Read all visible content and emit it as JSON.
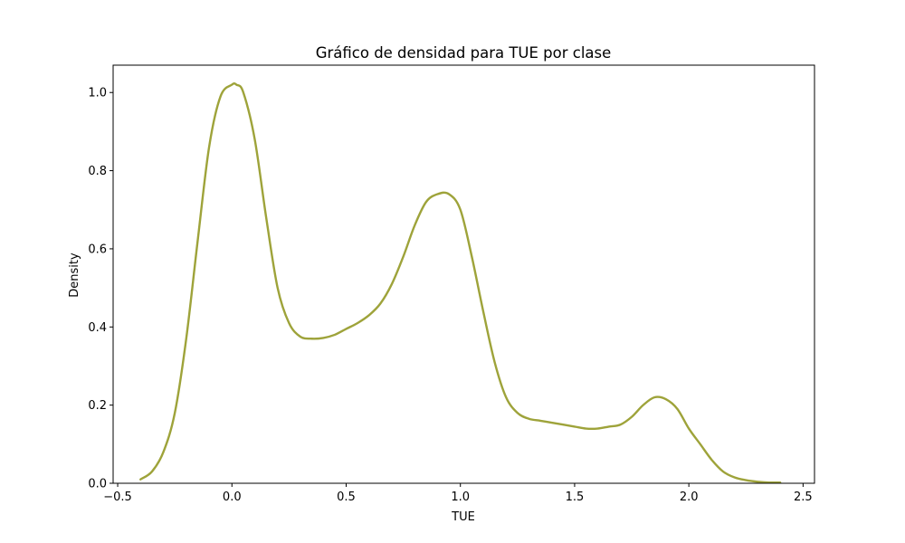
{
  "chart_data": {
    "type": "line",
    "title": "Gráfico de densidad para TUE por clase",
    "xlabel": "TUE",
    "ylabel": "Density",
    "xlim": [
      -0.52,
      2.55
    ],
    "ylim": [
      0,
      1.07
    ],
    "xticks": [
      -0.5,
      0.0,
      0.5,
      1.0,
      1.5,
      2.0,
      2.5
    ],
    "xtick_labels": [
      "−0.5",
      "0.0",
      "0.5",
      "1.0",
      "1.5",
      "2.0",
      "2.5"
    ],
    "yticks": [
      0.0,
      0.2,
      0.4,
      0.6,
      0.8,
      1.0
    ],
    "ytick_labels": [
      "0.0",
      "0.2",
      "0.4",
      "0.6",
      "0.8",
      "1.0"
    ],
    "grid": false,
    "legend": null,
    "series": [
      {
        "color": "#9ea33a",
        "x": [
          -0.4,
          -0.35,
          -0.3,
          -0.25,
          -0.2,
          -0.15,
          -0.1,
          -0.05,
          0.0,
          0.02,
          0.05,
          0.1,
          0.15,
          0.2,
          0.25,
          0.3,
          0.35,
          0.4,
          0.45,
          0.5,
          0.55,
          0.6,
          0.65,
          0.7,
          0.75,
          0.8,
          0.85,
          0.9,
          0.95,
          1.0,
          1.05,
          1.1,
          1.15,
          1.2,
          1.25,
          1.3,
          1.35,
          1.4,
          1.45,
          1.5,
          1.55,
          1.6,
          1.65,
          1.7,
          1.75,
          1.8,
          1.85,
          1.9,
          1.95,
          2.0,
          2.05,
          2.1,
          2.15,
          2.2,
          2.25,
          2.3,
          2.35,
          2.4
        ],
        "y": [
          0.01,
          0.03,
          0.08,
          0.18,
          0.37,
          0.62,
          0.86,
          0.99,
          1.02,
          1.02,
          1.0,
          0.88,
          0.68,
          0.5,
          0.41,
          0.375,
          0.37,
          0.372,
          0.38,
          0.395,
          0.41,
          0.43,
          0.46,
          0.51,
          0.58,
          0.66,
          0.72,
          0.74,
          0.74,
          0.7,
          0.58,
          0.44,
          0.31,
          0.22,
          0.18,
          0.165,
          0.16,
          0.155,
          0.15,
          0.145,
          0.14,
          0.14,
          0.145,
          0.15,
          0.17,
          0.2,
          0.22,
          0.215,
          0.19,
          0.14,
          0.1,
          0.06,
          0.03,
          0.015,
          0.008,
          0.004,
          0.002,
          0.002
        ]
      }
    ]
  }
}
